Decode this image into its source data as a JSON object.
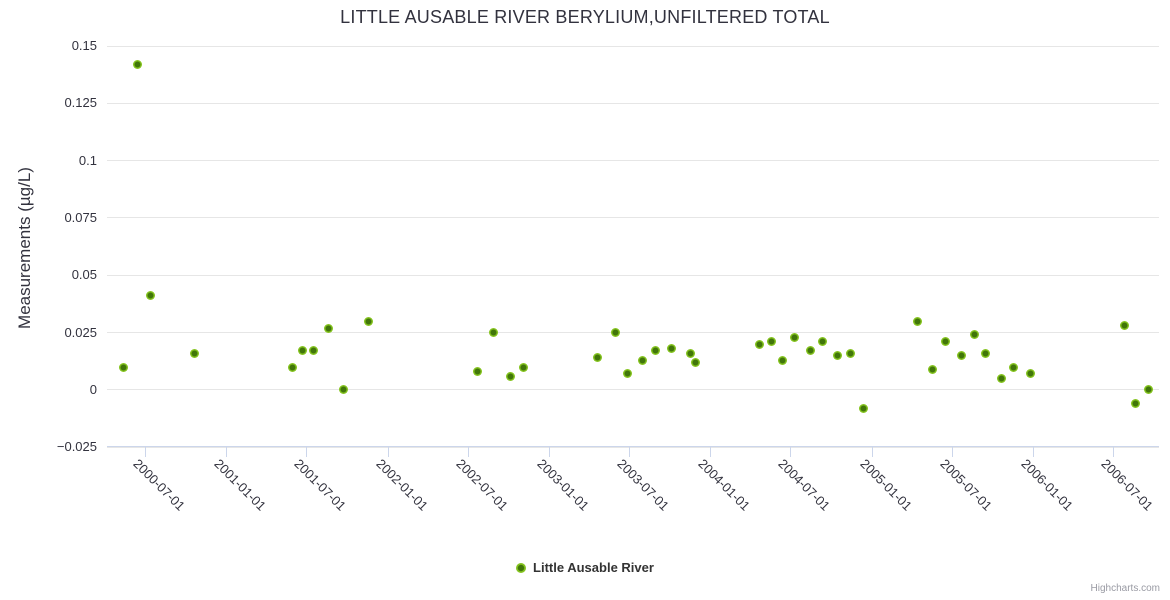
{
  "title": "LITTLE AUSABLE RIVER BERYLIUM,UNFILTERED TOTAL",
  "y_axis": {
    "title": "Measurements (µg/L)",
    "tick_labels": [
      "0.15",
      "0.125",
      "0.1",
      "0.075",
      "0.05",
      "0.025",
      "0",
      "−0.025"
    ]
  },
  "x_axis": {
    "tick_labels": [
      "2000-07-01",
      "2001-01-01",
      "2001-07-01",
      "2002-01-01",
      "2002-07-01",
      "2003-01-01",
      "2003-07-01",
      "2004-01-01",
      "2004-07-01",
      "2005-01-01",
      "2005-07-01",
      "2006-01-01",
      "2006-07-01"
    ]
  },
  "legend": {
    "label": "Little Ausable River"
  },
  "credit": "Highcharts.com",
  "colors": {
    "marker_outer": "#85c41f",
    "marker_inner": "#41760a",
    "grid": "#e6e6e6",
    "axis": "#ccd6eb",
    "text": "#32323e",
    "credit_text": "#999aa3"
  },
  "chart_data": {
    "type": "scatter",
    "title": "LITTLE AUSABLE RIVER BERYLIUM,UNFILTERED TOTAL",
    "xlabel": "",
    "ylabel": "Measurements (µg/L)",
    "ylim": [
      -0.025,
      0.15
    ],
    "y_ticks": [
      0.15,
      0.125,
      0.1,
      0.075,
      0.05,
      0.025,
      0,
      -0.025
    ],
    "x_ticks": [
      "2000-07-01",
      "2001-01-01",
      "2001-07-01",
      "2002-01-01",
      "2002-07-01",
      "2003-01-01",
      "2003-07-01",
      "2004-01-01",
      "2004-07-01",
      "2005-01-01",
      "2005-07-01",
      "2006-01-01",
      "2006-07-01"
    ],
    "grid": "horizontal-only",
    "legend_position": "bottom-center",
    "series": [
      {
        "name": "Little Ausable River",
        "color": "#85c41f",
        "points": [
          {
            "date": "2000-05-13",
            "value": 0.01
          },
          {
            "date": "2000-06-14",
            "value": 0.142
          },
          {
            "date": "2000-07-13",
            "value": 0.041
          },
          {
            "date": "2000-10-22",
            "value": 0.016
          },
          {
            "date": "2001-05-30",
            "value": 0.01
          },
          {
            "date": "2001-06-23",
            "value": 0.017
          },
          {
            "date": "2001-07-17",
            "value": 0.017
          },
          {
            "date": "2001-08-20",
            "value": 0.027
          },
          {
            "date": "2001-09-24",
            "value": 0.0
          },
          {
            "date": "2001-11-18",
            "value": 0.03
          },
          {
            "date": "2002-07-23",
            "value": 0.008
          },
          {
            "date": "2002-08-28",
            "value": 0.025
          },
          {
            "date": "2002-10-07",
            "value": 0.006
          },
          {
            "date": "2002-11-05",
            "value": 0.01
          },
          {
            "date": "2003-04-21",
            "value": 0.014
          },
          {
            "date": "2003-05-31",
            "value": 0.025
          },
          {
            "date": "2003-06-27",
            "value": 0.007
          },
          {
            "date": "2003-08-01",
            "value": 0.013
          },
          {
            "date": "2003-08-30",
            "value": 0.017
          },
          {
            "date": "2003-10-06",
            "value": 0.018
          },
          {
            "date": "2003-11-17",
            "value": 0.016
          },
          {
            "date": "2003-11-30",
            "value": 0.012
          },
          {
            "date": "2004-04-21",
            "value": 0.02
          },
          {
            "date": "2004-05-18",
            "value": 0.021
          },
          {
            "date": "2004-06-13",
            "value": 0.013
          },
          {
            "date": "2004-07-10",
            "value": 0.023
          },
          {
            "date": "2004-08-15",
            "value": 0.017
          },
          {
            "date": "2004-09-11",
            "value": 0.021
          },
          {
            "date": "2004-10-15",
            "value": 0.015
          },
          {
            "date": "2004-11-13",
            "value": 0.016
          },
          {
            "date": "2004-12-13",
            "value": -0.008
          },
          {
            "date": "2005-04-14",
            "value": 0.03
          },
          {
            "date": "2005-05-18",
            "value": 0.009
          },
          {
            "date": "2005-06-16",
            "value": 0.021
          },
          {
            "date": "2005-07-23",
            "value": 0.015
          },
          {
            "date": "2005-08-21",
            "value": 0.024
          },
          {
            "date": "2005-09-16",
            "value": 0.016
          },
          {
            "date": "2005-10-22",
            "value": 0.005
          },
          {
            "date": "2005-11-17",
            "value": 0.01
          },
          {
            "date": "2005-12-27",
            "value": 0.007
          },
          {
            "date": "2006-07-26",
            "value": 0.028
          },
          {
            "date": "2006-08-22",
            "value": -0.006
          },
          {
            "date": "2006-09-20",
            "value": 0.0
          }
        ]
      }
    ]
  }
}
